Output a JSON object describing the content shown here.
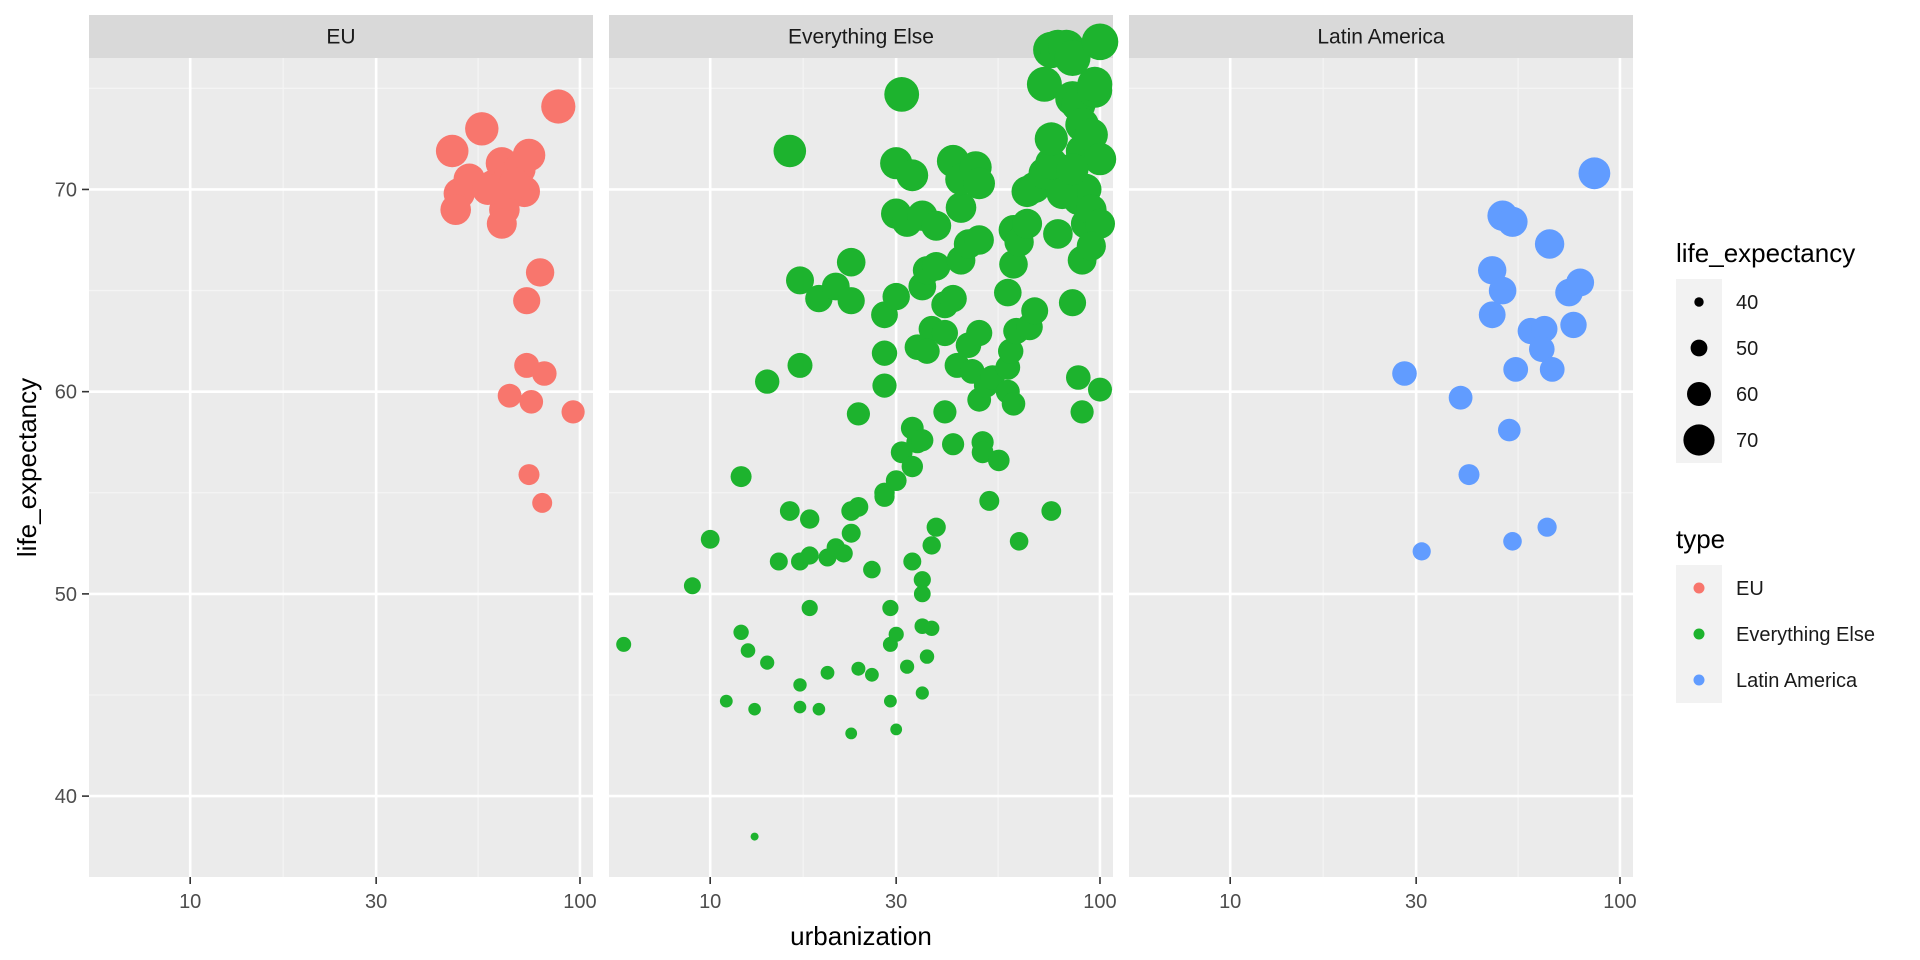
{
  "chart_data": {
    "type": "scatter",
    "xlabel": "urbanization",
    "ylabel": "life_expectancy",
    "x_scale": "log10",
    "xlim": [
      5.5,
      108
    ],
    "ylim": [
      36,
      76.5
    ],
    "x_ticks": [
      10,
      30,
      100
    ],
    "x_tick_labels": [
      "10",
      "30",
      "100"
    ],
    "y_ticks": [
      40,
      50,
      60,
      70
    ],
    "y_tick_labels": [
      "40",
      "50",
      "60",
      "70"
    ],
    "grid": true,
    "legend_position": "right",
    "size_legend": {
      "title": "life_expectancy",
      "values": [
        40,
        50,
        60,
        70
      ],
      "labels": [
        "40",
        "50",
        "60",
        "70"
      ]
    },
    "color_legend": {
      "title": "type",
      "entries": [
        "EU",
        "Everything Else",
        "Latin America"
      ]
    },
    "colors": {
      "EU": "#F8766D",
      "Everything Else": "#1DB32E",
      "Latin America": "#619CFF"
    },
    "panels": [
      {
        "name": "EU",
        "points": [
          [
            47,
            71.9
          ],
          [
            56,
            73.0
          ],
          [
            49,
            69.8
          ],
          [
            52,
            70.5
          ],
          [
            60,
            70.2
          ],
          [
            63,
            71.3
          ],
          [
            66,
            70.6
          ],
          [
            70,
            71.0
          ],
          [
            74,
            71.7
          ],
          [
            72,
            69.9
          ],
          [
            64,
            69.0
          ],
          [
            63,
            68.3
          ],
          [
            48,
            69.0
          ],
          [
            58,
            70.0
          ],
          [
            68,
            70.3
          ],
          [
            88,
            74.1
          ],
          [
            79,
            65.9
          ],
          [
            73,
            64.5
          ],
          [
            73,
            61.3
          ],
          [
            81,
            60.9
          ],
          [
            66,
            59.8
          ],
          [
            75,
            59.5
          ],
          [
            96,
            59.0
          ],
          [
            74,
            55.9
          ],
          [
            80,
            54.5
          ]
        ]
      },
      {
        "name": "Everything Else",
        "points": [
          [
            6,
            47.5
          ],
          [
            9,
            50.4
          ],
          [
            10,
            52.7
          ],
          [
            12,
            48.1
          ],
          [
            11,
            44.7
          ],
          [
            12.5,
            47.2
          ],
          [
            13,
            44.3
          ],
          [
            14,
            46.6
          ],
          [
            13,
            38.0
          ],
          [
            12,
            55.8
          ],
          [
            14,
            60.5
          ],
          [
            16,
            71.9
          ],
          [
            17,
            65.5
          ],
          [
            17,
            61.3
          ],
          [
            16,
            54.1
          ],
          [
            18,
            53.7
          ],
          [
            15,
            51.6
          ],
          [
            17,
            51.6
          ],
          [
            17,
            45.5
          ],
          [
            17,
            44.4
          ],
          [
            18,
            49.3
          ],
          [
            19,
            44.3
          ],
          [
            20,
            46.1
          ],
          [
            18,
            51.9
          ],
          [
            20,
            51.8
          ],
          [
            21,
            52.3
          ],
          [
            22,
            52.0
          ],
          [
            23,
            54.1
          ],
          [
            24,
            54.3
          ],
          [
            23,
            53.0
          ],
          [
            24,
            46.3
          ],
          [
            26,
            46.0
          ],
          [
            23,
            43.1
          ],
          [
            26,
            51.2
          ],
          [
            19,
            64.6
          ],
          [
            21,
            65.2
          ],
          [
            23,
            64.5
          ],
          [
            23,
            66.4
          ],
          [
            24,
            58.9
          ],
          [
            28,
            55.0
          ],
          [
            30,
            55.6
          ],
          [
            28,
            54.8
          ],
          [
            29,
            49.3
          ],
          [
            29,
            47.5
          ],
          [
            29,
            44.7
          ],
          [
            30,
            48.0
          ],
          [
            32,
            46.4
          ],
          [
            30,
            43.3
          ],
          [
            28,
            60.3
          ],
          [
            28,
            61.9
          ],
          [
            28,
            63.8
          ],
          [
            30,
            64.7
          ],
          [
            30,
            68.8
          ],
          [
            30,
            71.3
          ],
          [
            31,
            74.7
          ],
          [
            32,
            68.4
          ],
          [
            33,
            70.7
          ],
          [
            31,
            57.0
          ],
          [
            33,
            56.3
          ],
          [
            34,
            57.5
          ],
          [
            33,
            58.2
          ],
          [
            35,
            57.6
          ],
          [
            33,
            51.6
          ],
          [
            35,
            50.7
          ],
          [
            35,
            50.0
          ],
          [
            35,
            48.4
          ],
          [
            37,
            48.3
          ],
          [
            35,
            45.1
          ],
          [
            36,
            46.9
          ],
          [
            37,
            52.4
          ],
          [
            38,
            53.3
          ],
          [
            34,
            62.2
          ],
          [
            37,
            63.1
          ],
          [
            36,
            62.0
          ],
          [
            35,
            65.2
          ],
          [
            36,
            66.0
          ],
          [
            38,
            66.2
          ],
          [
            35,
            68.7
          ],
          [
            38,
            68.2
          ],
          [
            40,
            59.0
          ],
          [
            42,
            57.4
          ],
          [
            43,
            61.3
          ],
          [
            40,
            62.9
          ],
          [
            40,
            64.3
          ],
          [
            42,
            64.6
          ],
          [
            42,
            71.4
          ],
          [
            44,
            69.1
          ],
          [
            44,
            70.5
          ],
          [
            44,
            66.5
          ],
          [
            46,
            67.3
          ],
          [
            48,
            71.1
          ],
          [
            49,
            70.3
          ],
          [
            49,
            67.5
          ],
          [
            46,
            62.3
          ],
          [
            47,
            61.0
          ],
          [
            49,
            62.9
          ],
          [
            50,
            57.5
          ],
          [
            50,
            57.0
          ],
          [
            49,
            59.6
          ],
          [
            51,
            60.3
          ],
          [
            53,
            60.7
          ],
          [
            55,
            56.6
          ],
          [
            52,
            54.6
          ],
          [
            58,
            60.0
          ],
          [
            58,
            61.2
          ],
          [
            60,
            59.4
          ],
          [
            59,
            62.0
          ],
          [
            61,
            63.0
          ],
          [
            58,
            64.9
          ],
          [
            60,
            66.3
          ],
          [
            60,
            68.0
          ],
          [
            62,
            67.4
          ],
          [
            65,
            68.3
          ],
          [
            66,
            63.2
          ],
          [
            68,
            64.0
          ],
          [
            65,
            69.9
          ],
          [
            68,
            70.1
          ],
          [
            72,
            70.8
          ],
          [
            75,
            71.3
          ],
          [
            75,
            72.5
          ],
          [
            72,
            75.2
          ],
          [
            75,
            76.9
          ],
          [
            78,
            77.0
          ],
          [
            82,
            77.0
          ],
          [
            85,
            76.5
          ],
          [
            85,
            74.5
          ],
          [
            88,
            74.2
          ],
          [
            90,
            73.2
          ],
          [
            90,
            71.9
          ],
          [
            88,
            69.5
          ],
          [
            92,
            70.0
          ],
          [
            92,
            68.3
          ],
          [
            95,
            69.0
          ],
          [
            95,
            72.7
          ],
          [
            97,
            74.9
          ],
          [
            97,
            75.2
          ],
          [
            100,
            77.3
          ],
          [
            100,
            71.5
          ],
          [
            100,
            68.3
          ],
          [
            100,
            60.1
          ],
          [
            80,
            69.8
          ],
          [
            85,
            71.0
          ],
          [
            78,
            67.8
          ],
          [
            90,
            66.5
          ],
          [
            95,
            67.2
          ],
          [
            85,
            64.4
          ],
          [
            88,
            60.7
          ],
          [
            90,
            59.0
          ],
          [
            62,
            52.6
          ],
          [
            75,
            54.1
          ]
        ]
      },
      {
        "name": "Latin America",
        "points": [
          [
            28,
            60.9
          ],
          [
            31,
            52.1
          ],
          [
            39,
            59.7
          ],
          [
            41,
            55.9
          ],
          [
            47,
            63.8
          ],
          [
            47,
            66.0
          ],
          [
            50,
            65.0
          ],
          [
            50,
            68.7
          ],
          [
            53,
            68.4
          ],
          [
            52,
            58.1
          ],
          [
            53,
            52.6
          ],
          [
            54,
            61.1
          ],
          [
            59,
            63.0
          ],
          [
            64,
            63.1
          ],
          [
            63,
            62.1
          ],
          [
            67,
            61.1
          ],
          [
            65,
            53.3
          ],
          [
            66,
            67.3
          ],
          [
            74,
            64.9
          ],
          [
            76,
            63.3
          ],
          [
            79,
            65.4
          ],
          [
            86,
            70.8
          ]
        ]
      }
    ]
  }
}
